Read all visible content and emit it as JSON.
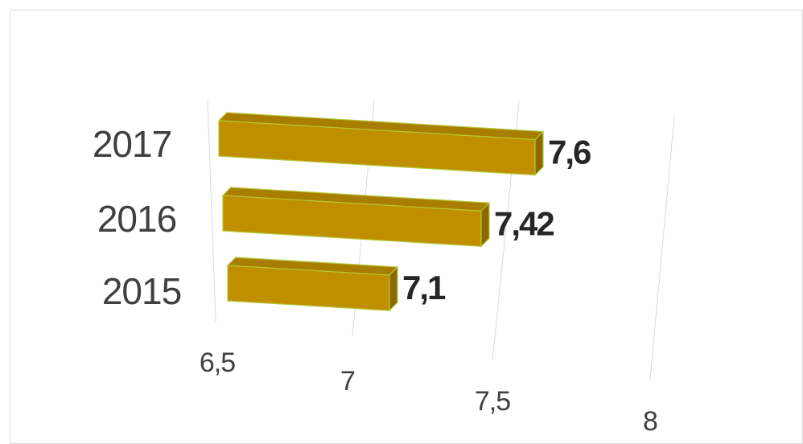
{
  "chart_data": {
    "type": "bar",
    "orientation": "horizontal",
    "style": "3d",
    "categories": [
      "2015",
      "2016",
      "2017"
    ],
    "values": [
      7.1,
      7.42,
      7.6
    ],
    "value_labels": [
      "7,1",
      "7,42",
      "7,6"
    ],
    "xlim": [
      6.5,
      8
    ],
    "x_ticks": [
      6.5,
      7,
      7.5,
      8
    ],
    "x_tick_labels": [
      "6,5",
      "7",
      "7,5",
      "8"
    ],
    "title": "",
    "xlabel": "",
    "ylabel": "",
    "grid": true,
    "legend": "none",
    "colors": {
      "bar_front": "#bf8f00",
      "bar_top": "#a87d00",
      "bar_end": "#8a6a00",
      "bar_edge": "#b4c832",
      "gridline": "#d9d9d9",
      "frame": "#d9d9d9"
    }
  }
}
